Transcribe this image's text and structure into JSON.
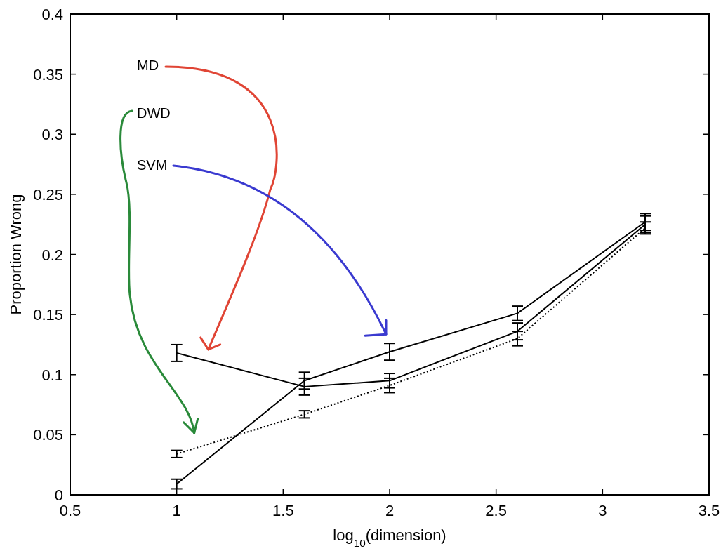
{
  "chart_data": {
    "type": "line",
    "xlabel": "log$_{10}$(dimension)",
    "ylabel": "Proportion Wrong",
    "x": [
      1,
      1.6,
      2,
      2.6,
      3.2
    ],
    "series": [
      {
        "name": "MD",
        "color": "#000000",
        "values": [
          0.118,
          0.09,
          0.095,
          0.136,
          0.225
        ],
        "errors": [
          0.007,
          0.007,
          0.006,
          0.007,
          0.007
        ]
      },
      {
        "name": "DWD",
        "color": "#000000",
        "line_style": "dotted",
        "values": [
          0.034,
          0.067,
          0.091,
          0.13,
          0.222
        ],
        "errors": [
          0.003,
          0.003,
          0.006,
          0.006,
          0.005
        ]
      },
      {
        "name": "SVM",
        "color": "#000000",
        "values": [
          0.009,
          0.095,
          0.119,
          0.151,
          0.227
        ],
        "errors": [
          0.004,
          0.007,
          0.007,
          0.006,
          0.007
        ]
      }
    ],
    "xlim": [
      0.5,
      3.5
    ],
    "xticks": [
      0.5,
      1,
      1.5,
      2,
      2.5,
      3,
      3.5
    ],
    "ylim": [
      0,
      0.4
    ],
    "yticks": [
      0,
      0.05,
      0.1,
      0.15,
      0.2,
      0.25,
      0.3,
      0.35,
      0.4
    ],
    "grid": false,
    "legend": false,
    "marker": "none"
  }
}
